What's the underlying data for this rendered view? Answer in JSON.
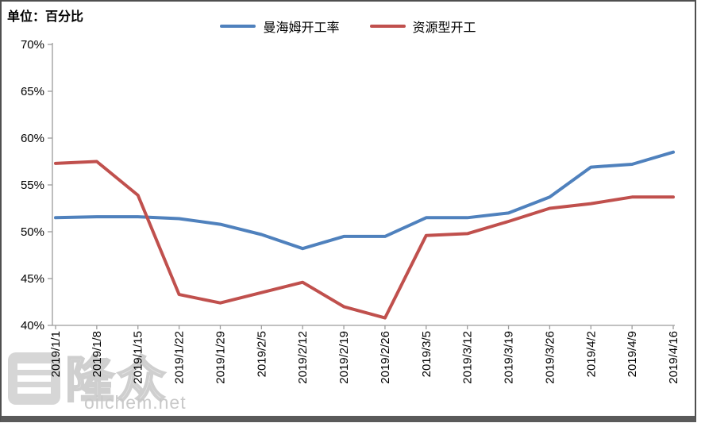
{
  "header": {
    "unit_label": "单位：百分比"
  },
  "legend": {
    "items": [
      {
        "label": "曼海姆开工率",
        "color": "#4F81BD"
      },
      {
        "label": "资源型开工",
        "color": "#C0504D"
      }
    ]
  },
  "watermark": {
    "logo_text": "隆众",
    "site_text": "oilchem.net"
  },
  "chart_data": {
    "type": "line",
    "title": "",
    "unit_label": "单位：百分比",
    "categories": [
      "2019/1/1",
      "2019/1/8",
      "2019/1/15",
      "2019/1/22",
      "2019/1/29",
      "2019/2/5",
      "2019/2/12",
      "2019/2/19",
      "2019/2/26",
      "2019/3/5",
      "2019/3/12",
      "2019/3/19",
      "2019/3/26",
      "2019/4/2",
      "2019/4/9",
      "2019/4/16"
    ],
    "series": [
      {
        "name": "曼海姆开工率",
        "color": "#4F81BD",
        "values": [
          51.5,
          51.6,
          51.6,
          51.4,
          50.8,
          49.7,
          48.2,
          49.5,
          49.5,
          51.5,
          51.5,
          52.0,
          53.7,
          56.9,
          57.2,
          58.5
        ]
      },
      {
        "name": "资源型开工",
        "color": "#C0504D",
        "values": [
          57.3,
          57.5,
          53.9,
          43.3,
          42.4,
          43.5,
          44.6,
          42.0,
          40.8,
          49.6,
          49.8,
          51.1,
          52.5,
          53.0,
          53.7,
          53.7
        ]
      }
    ],
    "ylim": [
      40,
      70
    ],
    "ytick_step": 5,
    "y_tick_labels": [
      "70%",
      "65%",
      "60%",
      "55%",
      "50%",
      "45%",
      "40%"
    ],
    "ytick_format": "percent",
    "grid": false,
    "legend_position": "top-center",
    "x_label_rotation": -90,
    "axis_color": "#9c9c9c"
  }
}
